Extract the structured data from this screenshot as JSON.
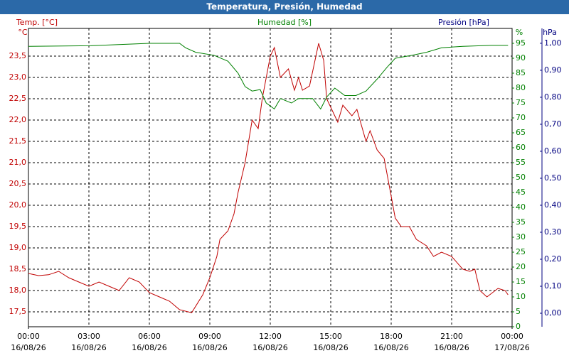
{
  "chart_data": {
    "type": "line",
    "title": "Temperatura, Presión, Humedad",
    "grid": true,
    "xlim": [
      0,
      24
    ],
    "xticks": [
      {
        "value": 0,
        "label": "00:00"
      },
      {
        "value": 3,
        "label": "03:00"
      },
      {
        "value": 6,
        "label": "06:00"
      },
      {
        "value": 9,
        "label": "09:00"
      },
      {
        "value": 12,
        "label": "12:00"
      },
      {
        "value": 15,
        "label": "15:00"
      },
      {
        "value": 18,
        "label": "18:00"
      },
      {
        "value": 21,
        "label": "21:00"
      },
      {
        "value": 24,
        "label": "00:00"
      }
    ],
    "xtick_dates": [
      "16/08/26",
      "16/08/26",
      "16/08/26",
      "16/08/26",
      "16/08/26",
      "16/08/26",
      "16/08/26",
      "16/08/26",
      "17/08/26"
    ],
    "axes": [
      {
        "title": "Temp. [°C]",
        "unit": "°C",
        "color": "#c00000",
        "ylim": [
          17.15,
          24.15
        ],
        "yticks": [
          {
            "value": 17.5,
            "label": "17,5"
          },
          {
            "value": 18,
            "label": "18,0"
          },
          {
            "value": 18.5,
            "label": "18,5"
          },
          {
            "value": 19,
            "label": "19,0"
          },
          {
            "value": 19.5,
            "label": "19,5"
          },
          {
            "value": 20,
            "label": "20,0"
          },
          {
            "value": 20.5,
            "label": "20,5"
          },
          {
            "value": 21,
            "label": "21,0"
          },
          {
            "value": 21.5,
            "label": "21,5"
          },
          {
            "value": 22,
            "label": "22,0"
          },
          {
            "value": 22.5,
            "label": "22,5"
          },
          {
            "value": 23,
            "label": "23,0"
          },
          {
            "value": 23.5,
            "label": "23,5"
          }
        ]
      },
      {
        "title": "Humedad [%]",
        "unit": "%",
        "color": "#008000",
        "ylim": [
          0,
          100
        ],
        "yticks": [
          0,
          5,
          10,
          15,
          20,
          25,
          30,
          35,
          40,
          45,
          50,
          55,
          60,
          65,
          70,
          75,
          80,
          85,
          90,
          95
        ]
      },
      {
        "title": "Presión [hPa]",
        "unit": "hPa",
        "color": "#000080",
        "ylim": [
          -0.05,
          1.055
        ],
        "yticks": [
          {
            "value": 0,
            "label": "0,00"
          },
          {
            "value": 0.1,
            "label": "0,10"
          },
          {
            "value": 0.2,
            "label": "0,20"
          },
          {
            "value": 0.3,
            "label": "0,30"
          },
          {
            "value": 0.4,
            "label": "0,40"
          },
          {
            "value": 0.5,
            "label": "0,50"
          },
          {
            "value": 0.6,
            "label": "0,60"
          },
          {
            "value": 0.7,
            "label": "0,70"
          },
          {
            "value": 0.8,
            "label": "0,80"
          },
          {
            "value": 0.9,
            "label": "0,90"
          },
          {
            "value": 1,
            "label": "1,00"
          }
        ]
      }
    ],
    "series": [
      {
        "name": "Temp. [°C]",
        "axis": 0,
        "color": "#c00000",
        "x": [
          0,
          0.5,
          1,
          1.5,
          2,
          2.5,
          3,
          3.5,
          4,
          4.5,
          5,
          5.5,
          6,
          6.5,
          7,
          7.5,
          8.1,
          8.65,
          9.0,
          9.35,
          9.5,
          9.9,
          10.2,
          10.4,
          10.75,
          11.1,
          11.4,
          11.6,
          12,
          12.2,
          12.5,
          12.9,
          13.2,
          13.4,
          13.6,
          13.95,
          14.4,
          14.65,
          14.8,
          15.35,
          15.6,
          16.05,
          16.3,
          16.75,
          16.95,
          17.3,
          17.65,
          18.2,
          18.5,
          18.9,
          19.25,
          19.75,
          20.1,
          20.5,
          21,
          21.55,
          21.9,
          22.15,
          22.4,
          22.75,
          23.3,
          23.65,
          23.8
        ],
        "values": [
          18.4,
          18.35,
          18.37,
          18.45,
          18.3,
          18.2,
          18.1,
          18.2,
          18.1,
          18.0,
          18.3,
          18.2,
          17.95,
          17.85,
          17.75,
          17.55,
          17.48,
          17.9,
          18.3,
          18.8,
          19.2,
          19.4,
          19.8,
          20.3,
          21.0,
          22.0,
          21.8,
          22.5,
          23.5,
          23.7,
          23.0,
          23.2,
          22.7,
          23.0,
          22.7,
          22.8,
          23.8,
          23.4,
          22.5,
          21.95,
          22.35,
          22.1,
          22.25,
          21.5,
          21.75,
          21.3,
          21.1,
          19.7,
          19.5,
          19.5,
          19.2,
          19.05,
          18.8,
          18.9,
          18.8,
          18.5,
          18.45,
          18.5,
          18.0,
          17.85,
          18.05,
          18.0,
          17.9
        ]
      },
      {
        "name": "Humedad [%]",
        "axis": 1,
        "color": "#008000",
        "x": [
          0,
          3,
          6,
          7.5,
          7.8,
          8.3,
          9.2,
          9.9,
          10.4,
          10.75,
          11.1,
          11.5,
          11.8,
          12.2,
          12.5,
          13.05,
          13.4,
          14.1,
          14.5,
          14.8,
          15.2,
          15.7,
          16.25,
          16.75,
          17.3,
          17.8,
          18.2,
          19.05,
          19.75,
          20.5,
          21.55,
          22.95,
          23.8
        ],
        "values": [
          94,
          94.2,
          95,
          95,
          93.5,
          92,
          91,
          89,
          85,
          80.5,
          79,
          79.5,
          75,
          73,
          76.5,
          75,
          76.5,
          76.5,
          73,
          77,
          80,
          77.5,
          77.5,
          79,
          83,
          87,
          90,
          91,
          92,
          93.5,
          94,
          94.3,
          94.3
        ]
      }
    ]
  }
}
